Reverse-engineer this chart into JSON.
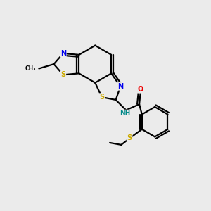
{
  "background_color": "#ebebeb",
  "atom_colors": {
    "C": "#000000",
    "N": "#0000ee",
    "S": "#ccaa00",
    "O": "#ee0000",
    "H": "#008888"
  },
  "figsize": [
    3.0,
    3.0
  ],
  "dpi": 100
}
